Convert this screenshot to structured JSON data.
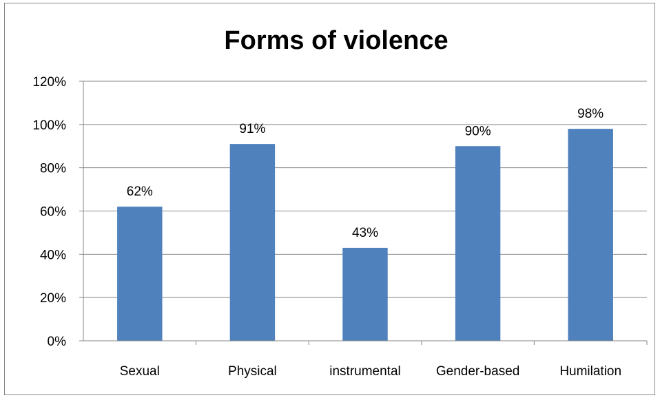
{
  "chart_data": {
    "type": "bar",
    "title": "Forms of violence",
    "xlabel": "",
    "ylabel": "",
    "categories": [
      "Sexual",
      "Physical",
      "instrumental",
      "Gender-based",
      "Humilation"
    ],
    "values": [
      62,
      91,
      43,
      90,
      98
    ],
    "value_labels": [
      "62%",
      "91%",
      "43%",
      "90%",
      "98%"
    ],
    "ylim": [
      0,
      120
    ],
    "yticks": [
      0,
      20,
      40,
      60,
      80,
      100,
      120
    ],
    "ytick_labels": [
      "0%",
      "20%",
      "40%",
      "60%",
      "80%",
      "100%",
      "120%"
    ],
    "grid": true,
    "legend": "none",
    "bar_color": "#4F81BD"
  }
}
